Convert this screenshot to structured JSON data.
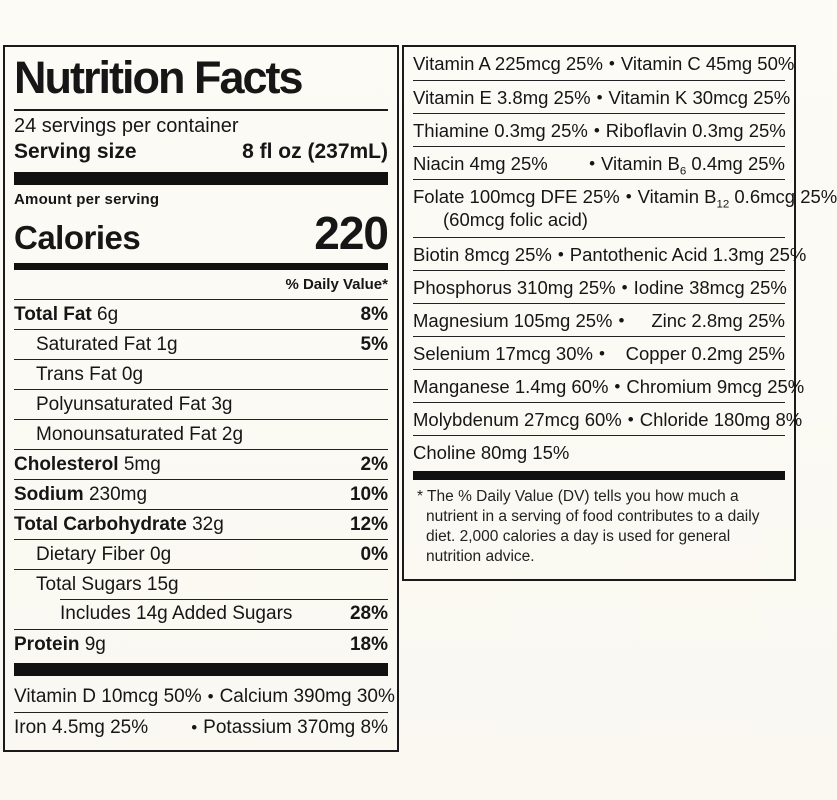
{
  "bullet": "•",
  "label": {
    "title": "Nutrition Facts",
    "servings_per_container": "24 servings per container",
    "serving_size_label": "Serving size",
    "serving_size_value": "8 fl oz (237mL)",
    "amount_per_serving": "Amount per serving",
    "calories_label": "Calories",
    "calories_value": "220",
    "daily_value_header": "% Daily Value*",
    "nutrients": [
      {
        "name": "Total Fat",
        "amount": "6g",
        "dv": "8%"
      },
      {
        "name": "Saturated Fat",
        "amount": "1g",
        "dv": "5%"
      },
      {
        "name": "Trans Fat",
        "amount": "0g",
        "dv": ""
      },
      {
        "name": "Polyunsaturated Fat",
        "amount": "3g",
        "dv": ""
      },
      {
        "name": "Monounsaturated Fat",
        "amount": "2g",
        "dv": ""
      },
      {
        "name": "Cholesterol",
        "amount": "5mg",
        "dv": "2%"
      },
      {
        "name": "Sodium",
        "amount": "230mg",
        "dv": "10%"
      },
      {
        "name": "Total Carbohydrate",
        "amount": "32g",
        "dv": "12%"
      },
      {
        "name": "Dietary Fiber",
        "amount": "0g",
        "dv": "0%"
      },
      {
        "name": "Total Sugars",
        "amount": "15g",
        "dv": ""
      },
      {
        "name": "Includes 14g Added Sugars",
        "amount": "",
        "dv": "28%"
      },
      {
        "name": "Protein",
        "amount": "9g",
        "dv": "18%"
      }
    ],
    "minerals": [
      {
        "left": "Vitamin D 10mcg 50%",
        "right": "Calcium 390mg 30%"
      },
      {
        "left": "Iron 4.5mg 25%",
        "right": "Potassium 370mg  8%"
      }
    ],
    "footnote": "* The % Daily Value (DV) tells you how much a nutrient in a serving of food contributes to a daily diet. 2,000 calories a day is used for general nutrition advice."
  },
  "vitamin_panel": {
    "rows": [
      {
        "left": "Vitamin A 225mcg 25%",
        "right": "Vitamin C 45mg 50%"
      },
      {
        "left": "Vitamin E 3.8mg 25%",
        "right": "Vitamin K 30mcg 25%"
      },
      {
        "left": "Thiamine 0.3mg 25%",
        "right": "Riboflavin  0.3mg  25%"
      },
      {
        "left": "Niacin 4mg 25%",
        "right_pre": "Vitamin B",
        "right_sub": "6",
        "right_post": " 0.4mg  25%"
      },
      {
        "left": "Folate 100mcg DFE 25%",
        "left_line2": "(60mcg folic acid)",
        "right_pre": "Vitamin B",
        "right_sub": "12",
        "right_post": " 0.6mcg  25%"
      },
      {
        "left": "Biotin 8mcg  25%",
        "right": "Pantothenic Acid 1.3mg  25%"
      },
      {
        "left": "Phosphorus 310mg 25%",
        "right": "Iodine 38mcg  25%"
      },
      {
        "left": "Magnesium 105mg  25%",
        "right": "Zinc 2.8mg 25%"
      },
      {
        "left": "Selenium 17mcg  30%",
        "right": "Copper 0.2mg  25%"
      },
      {
        "left": "Manganese 1.4mg  60%",
        "right": "Chromium 9mcg 25%"
      },
      {
        "left": "Molybdenum 27mcg  60%",
        "right": "Chloride 180mg  8%"
      },
      {
        "left": "Choline 80mg 15%",
        "right": ""
      }
    ]
  }
}
